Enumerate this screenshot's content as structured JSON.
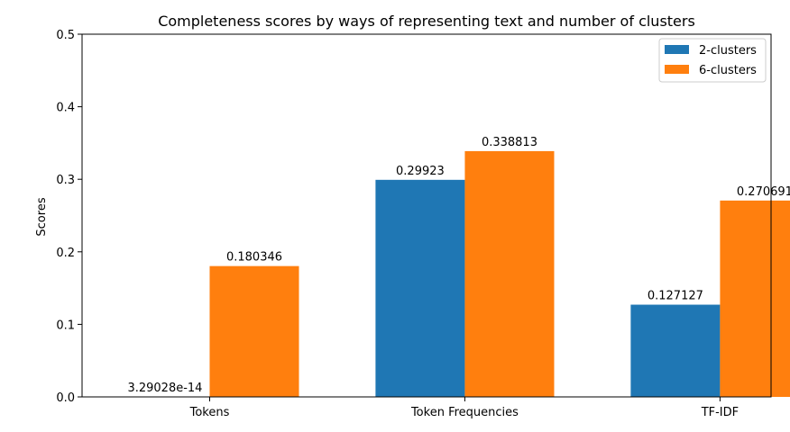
{
  "chart_data": {
    "type": "bar",
    "title": "Completeness scores by ways of representing text and number of clusters",
    "xlabel": "",
    "ylabel": "Scores",
    "categories": [
      "Tokens",
      "Token Frequencies",
      "TF-IDF"
    ],
    "ylim": [
      0,
      0.5
    ],
    "yticks": [
      0.0,
      0.1,
      0.2,
      0.3,
      0.4,
      0.5
    ],
    "ytick_labels": [
      "0.0",
      "0.1",
      "0.2",
      "0.3",
      "0.4",
      "0.5"
    ],
    "series": [
      {
        "name": "2-clusters",
        "color": "#1f77b4",
        "values": [
          3.29028e-14,
          0.29923,
          0.127127
        ],
        "labels": [
          "3.29028e-14",
          "0.29923",
          "0.127127"
        ]
      },
      {
        "name": "6-clusters",
        "color": "#ff7f0e",
        "values": [
          0.180346,
          0.338813,
          0.270691
        ],
        "labels": [
          "0.180346",
          "0.338813",
          "0.270691"
        ]
      }
    ],
    "legend_position": "top-right",
    "grid": false
  }
}
